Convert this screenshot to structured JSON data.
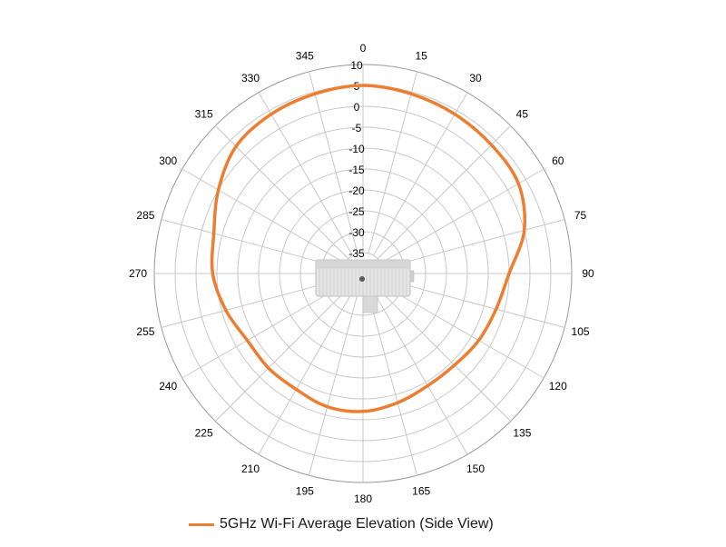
{
  "chart_data": {
    "type": "polar-line",
    "title": "",
    "angle_unit": "degrees",
    "angle_ticks": [
      "0",
      "15",
      "30",
      "45",
      "60",
      "75",
      "90",
      "105",
      "120",
      "135",
      "150",
      "165",
      "180",
      "195",
      "210",
      "225",
      "240",
      "255",
      "270",
      "285",
      "300",
      "315",
      "330",
      "345"
    ],
    "radial_ticks": [
      "10",
      "5",
      "0",
      "-5",
      "-10",
      "-15",
      "-20",
      "-25",
      "-30",
      "-35"
    ],
    "radial_range": [
      -40,
      10
    ],
    "grid": true,
    "legend_position": "bottom",
    "center_image": "access-point-device",
    "series": [
      {
        "name": "5GHz Wi-Fi Average Elevation (Side View)",
        "color": "#ED7D31",
        "angles": [
          0,
          15,
          30,
          45,
          60,
          75,
          90,
          105,
          120,
          135,
          150,
          165,
          180,
          195,
          210,
          225,
          240,
          255,
          270,
          285,
          300,
          315,
          330,
          345,
          360
        ],
        "values": [
          5,
          4.5,
          4,
          3.5,
          3,
          0,
          -5,
          -7,
          -8,
          -9,
          -9,
          -8,
          -7,
          -7,
          -8,
          -8,
          -8,
          -6,
          -4,
          -3,
          0,
          3,
          4,
          4.5,
          5
        ]
      }
    ]
  }
}
